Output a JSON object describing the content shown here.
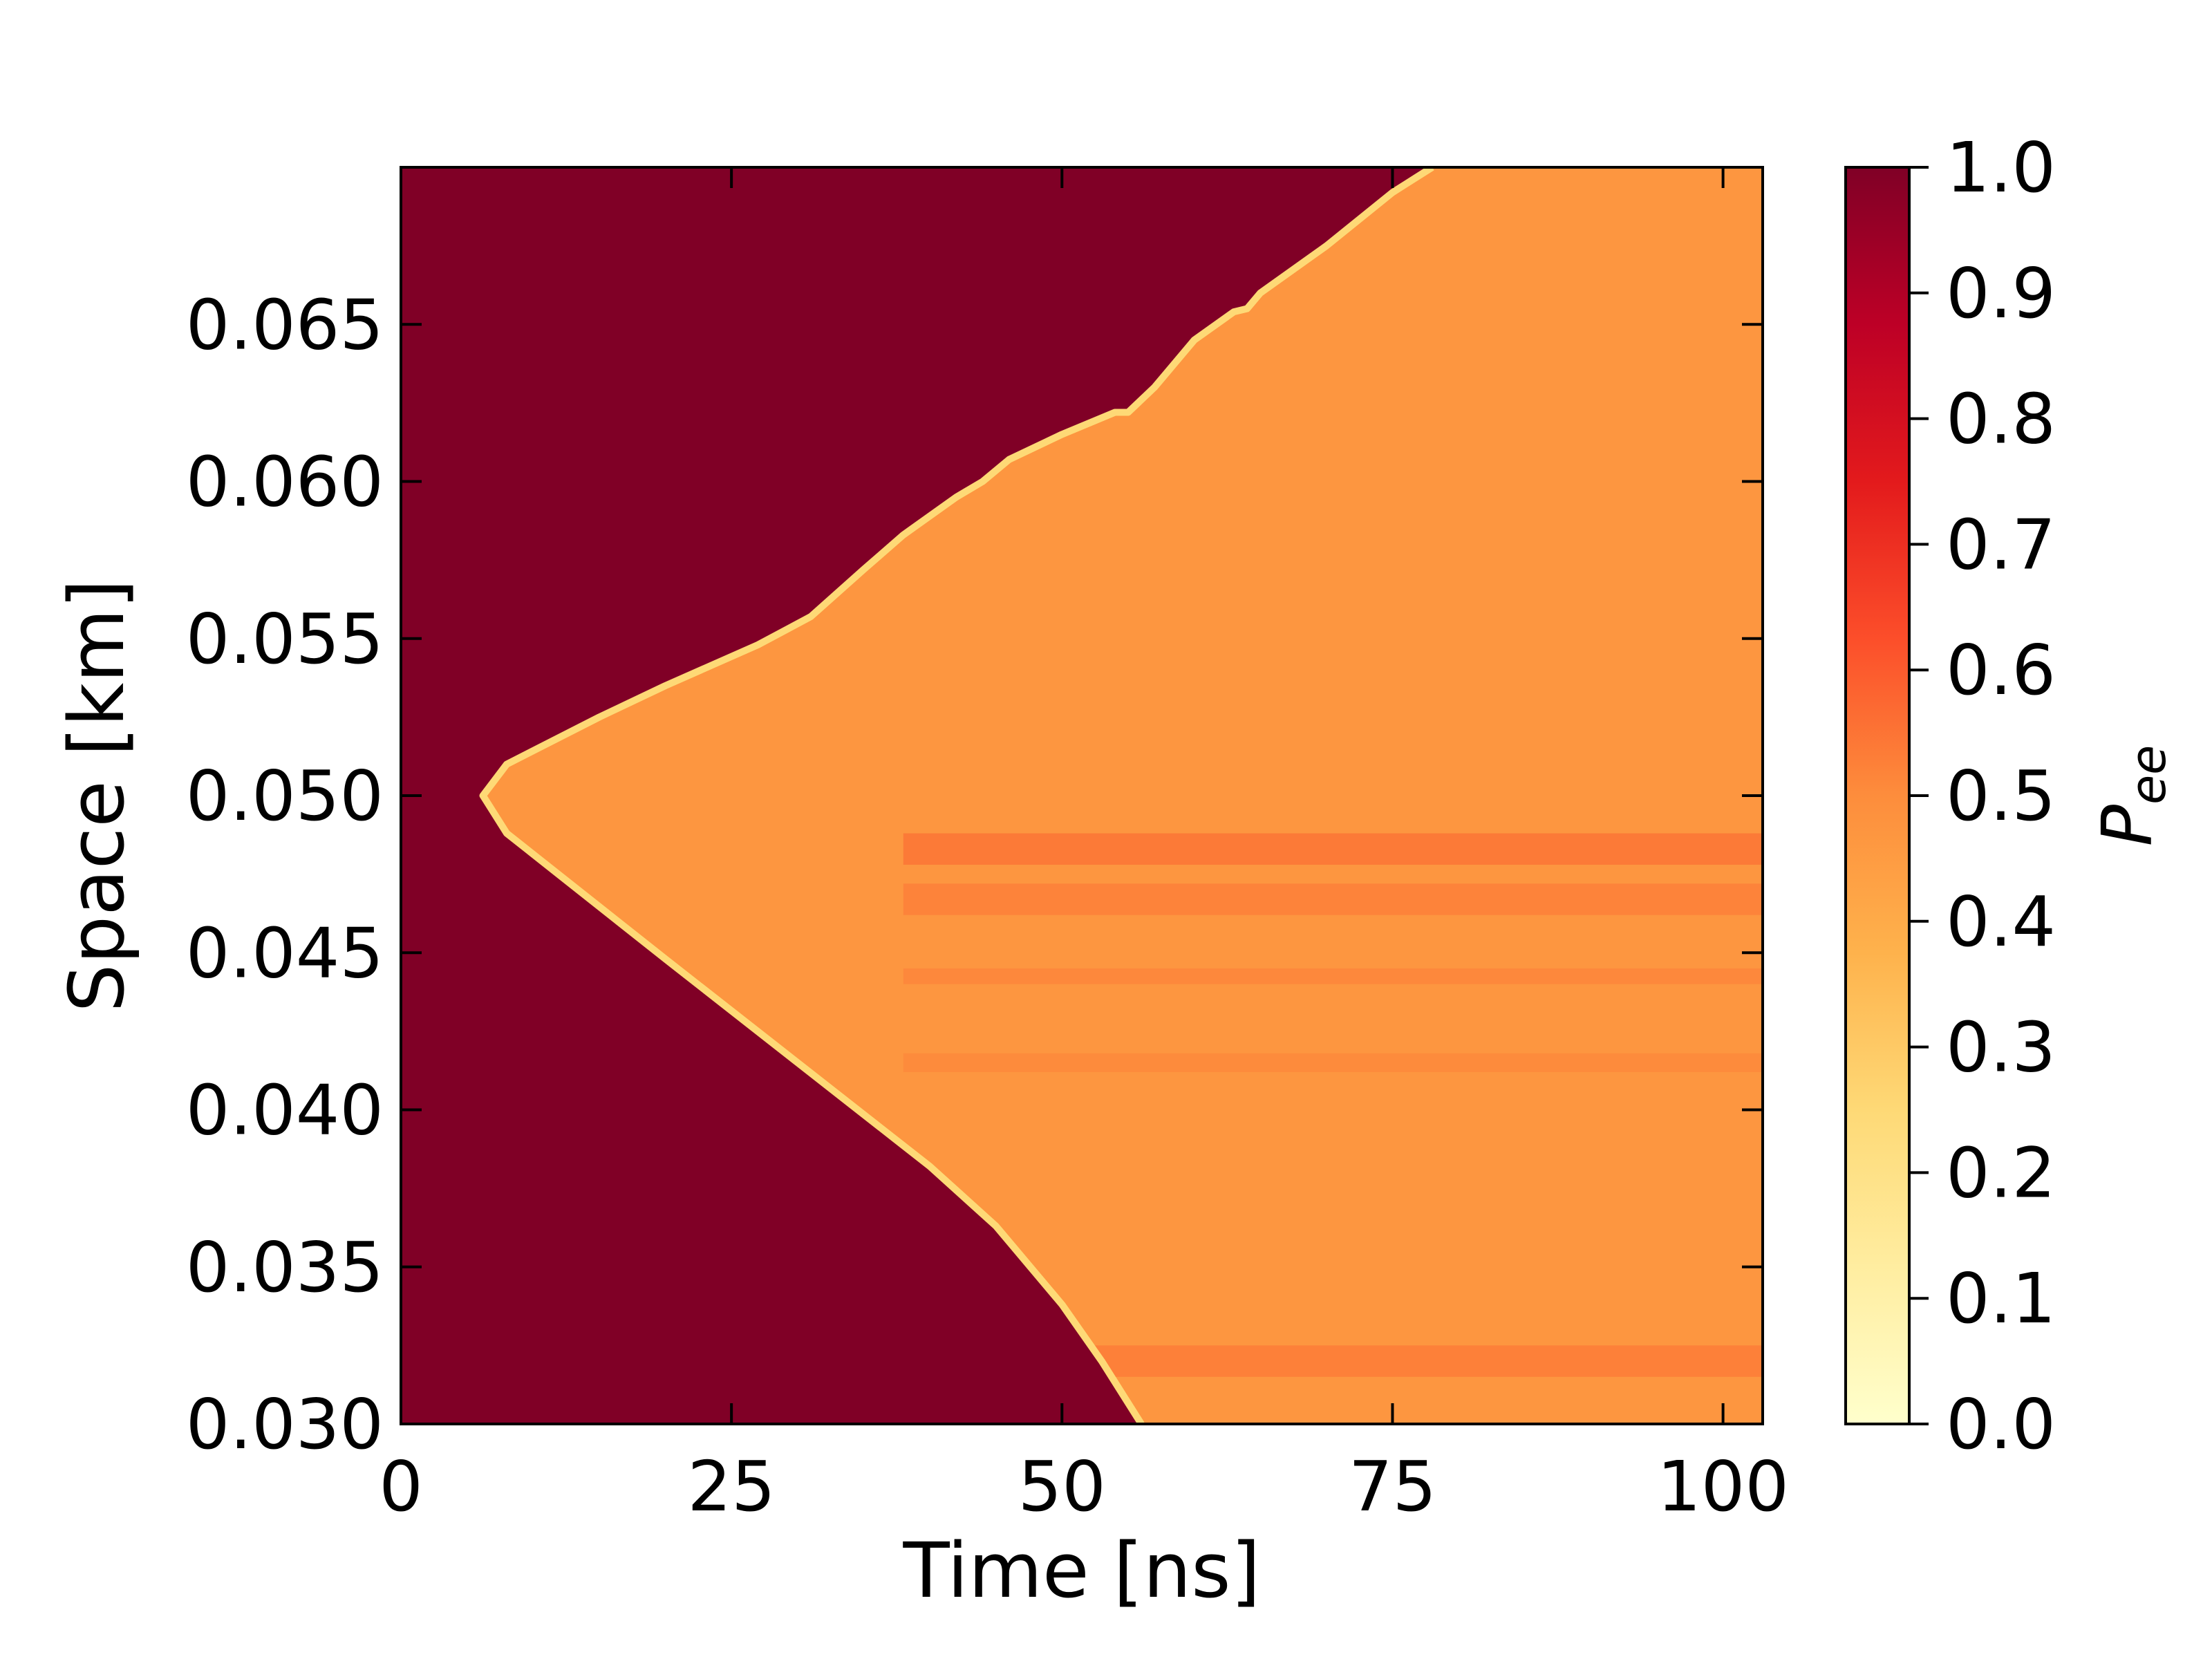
{
  "chart_data": {
    "type": "heatmap",
    "title": "",
    "xlabel": "Time [ns]",
    "ylabel": "Space [km]",
    "xlim": [
      0,
      103
    ],
    "ylim": [
      0.03,
      0.07
    ],
    "x_ticks": [
      "0",
      "25",
      "50",
      "75",
      "100"
    ],
    "x_tick_values": [
      0,
      25,
      50,
      75,
      100
    ],
    "y_ticks": [
      "0.030",
      "0.035",
      "0.040",
      "0.045",
      "0.050",
      "0.055",
      "0.060",
      "0.065"
    ],
    "y_tick_values": [
      0.03,
      0.035,
      0.04,
      0.045,
      0.05,
      0.055,
      0.06,
      0.065
    ],
    "colorbar": {
      "label_main": "P",
      "label_sub": "ee",
      "range": [
        0.0,
        1.0
      ],
      "ticks": [
        "0.0",
        "0.1",
        "0.2",
        "0.3",
        "0.4",
        "0.5",
        "0.6",
        "0.7",
        "0.8",
        "0.9",
        "1.0"
      ],
      "tick_values": [
        0.0,
        0.1,
        0.2,
        0.3,
        0.4,
        0.5,
        0.6,
        0.7,
        0.8,
        0.9,
        1.0
      ],
      "colormap": "YlOrRd",
      "colors": [
        "#ffffcc",
        "#ffeda0",
        "#fed976",
        "#feb24c",
        "#fd8d3c",
        "#fc4e2a",
        "#e31a1c",
        "#bd0026",
        "#800026"
      ]
    },
    "background_value": 1.0,
    "region": {
      "description_value": 0.47,
      "front_upper": [
        [
          6.2,
          0.05
        ],
        [
          8,
          0.051
        ],
        [
          15,
          0.0525
        ],
        [
          20,
          0.0535
        ],
        [
          27,
          0.0548
        ],
        [
          31,
          0.0557
        ],
        [
          35,
          0.0572
        ],
        [
          38,
          0.0583
        ],
        [
          42,
          0.0595
        ],
        [
          44,
          0.06
        ],
        [
          46,
          0.0607
        ],
        [
          50,
          0.0615
        ],
        [
          54,
          0.0622
        ],
        [
          55,
          0.0622
        ],
        [
          57,
          0.063
        ],
        [
          60,
          0.0645
        ],
        [
          63,
          0.0654
        ],
        [
          64,
          0.0655
        ],
        [
          65,
          0.066
        ],
        [
          70,
          0.0675
        ],
        [
          75,
          0.0692
        ],
        [
          78,
          0.07
        ]
      ],
      "front_lower": [
        [
          6.2,
          0.05
        ],
        [
          8,
          0.0488
        ],
        [
          20,
          0.0448
        ],
        [
          30,
          0.0415
        ],
        [
          40,
          0.0382
        ],
        [
          45,
          0.0363
        ],
        [
          50,
          0.0338
        ],
        [
          53,
          0.032
        ],
        [
          56,
          0.03
        ]
      ],
      "front_value": 0.25
    }
  }
}
